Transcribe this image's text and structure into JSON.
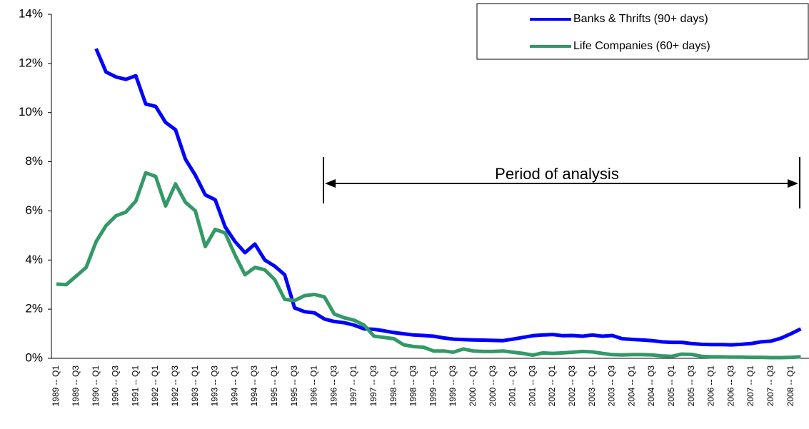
{
  "chart_data": {
    "type": "line",
    "annotation": "Period of analysis",
    "categories": [
      "1989 -- Q1",
      null,
      "1989 -- Q3",
      null,
      "1990 -- Q1",
      null,
      "1990 -- Q3",
      null,
      "1991 -- Q1",
      null,
      "1992 -- Q1",
      null,
      "1992 -- Q3",
      null,
      "1993 -- Q1",
      null,
      "1993 -- Q3",
      null,
      "1994 -- Q1",
      null,
      "1994 -- Q3",
      null,
      "1995 -- Q1",
      null,
      "1995 -- Q3",
      null,
      "1996 -- Q1",
      null,
      "1996 -- Q3",
      null,
      "1997 -- Q1",
      null,
      "1997 -- Q3",
      null,
      "1998 -- Q1",
      null,
      "1998 -- Q3",
      null,
      "1999 -- Q1",
      null,
      "1999 -- Q3",
      null,
      "2000 -- Q1",
      null,
      "2000 -- Q3",
      null,
      "2001 -- Q1",
      null,
      "2001 -- Q3",
      null,
      "2002 -- Q1",
      null,
      "2002 -- Q3",
      null,
      "2003 -- Q1",
      null,
      "2003 -- Q3",
      null,
      "2004 -- Q1",
      null,
      "2004 -- Q3",
      null,
      "2005 -- Q1",
      null,
      "2005 -- Q3",
      null,
      "2006 -- Q1",
      null,
      "2006 -- Q3",
      null,
      "2007 -- Q1",
      null,
      "2007 -- Q3",
      null,
      "2008 -- Q1",
      null
    ],
    "series": [
      {
        "name": "Banks & Thrifts (90+ days)",
        "color": "#0000ff",
        "values": [
          null,
          null,
          null,
          null,
          12.6,
          11.65,
          11.45,
          11.35,
          11.5,
          10.35,
          10.25,
          9.6,
          9.3,
          8.1,
          7.45,
          6.65,
          6.45,
          5.35,
          4.75,
          4.3,
          4.65,
          4.0,
          3.75,
          3.4,
          2.05,
          1.9,
          1.85,
          1.6,
          1.5,
          1.45,
          1.35,
          1.2,
          1.18,
          1.12,
          1.05,
          1.0,
          0.95,
          0.93,
          0.9,
          0.83,
          0.78,
          0.76,
          0.75,
          0.74,
          0.73,
          0.72,
          0.78,
          0.85,
          0.92,
          0.95,
          0.97,
          0.92,
          0.93,
          0.9,
          0.95,
          0.9,
          0.93,
          0.8,
          0.77,
          0.75,
          0.72,
          0.67,
          0.65,
          0.65,
          0.6,
          0.57,
          0.56,
          0.56,
          0.55,
          0.57,
          0.6,
          0.67,
          0.7,
          0.82,
          1.0,
          1.2
        ]
      },
      {
        "name": "Life Companies (60+ days)",
        "color": "#339966",
        "values": [
          3.02,
          3.0,
          3.35,
          3.7,
          4.75,
          5.4,
          5.8,
          5.95,
          6.4,
          7.55,
          7.4,
          6.2,
          7.1,
          6.35,
          6.0,
          4.55,
          5.25,
          5.1,
          4.2,
          3.4,
          3.7,
          3.6,
          3.2,
          2.4,
          2.35,
          2.55,
          2.6,
          2.5,
          1.8,
          1.65,
          1.55,
          1.35,
          0.9,
          0.85,
          0.8,
          0.55,
          0.48,
          0.45,
          0.3,
          0.3,
          0.25,
          0.38,
          0.3,
          0.28,
          0.28,
          0.3,
          0.25,
          0.2,
          0.13,
          0.22,
          0.2,
          0.22,
          0.25,
          0.28,
          0.26,
          0.2,
          0.15,
          0.14,
          0.15,
          0.15,
          0.14,
          0.1,
          0.08,
          0.17,
          0.16,
          0.08,
          0.06,
          0.06,
          0.05,
          0.05,
          0.04,
          0.04,
          0.03,
          0.03,
          0.04,
          0.06
        ]
      }
    ],
    "ylim": [
      0,
      14
    ],
    "yticks": [
      {
        "value": 0,
        "label": "0%"
      },
      {
        "value": 2,
        "label": "2%"
      },
      {
        "value": 4,
        "label": "4%"
      },
      {
        "value": 6,
        "label": "6%"
      },
      {
        "value": 8,
        "label": "8%"
      },
      {
        "value": 10,
        "label": "10%"
      },
      {
        "value": 12,
        "label": "12%"
      },
      {
        "value": 14,
        "label": "14%"
      }
    ],
    "legend": "top-right"
  }
}
